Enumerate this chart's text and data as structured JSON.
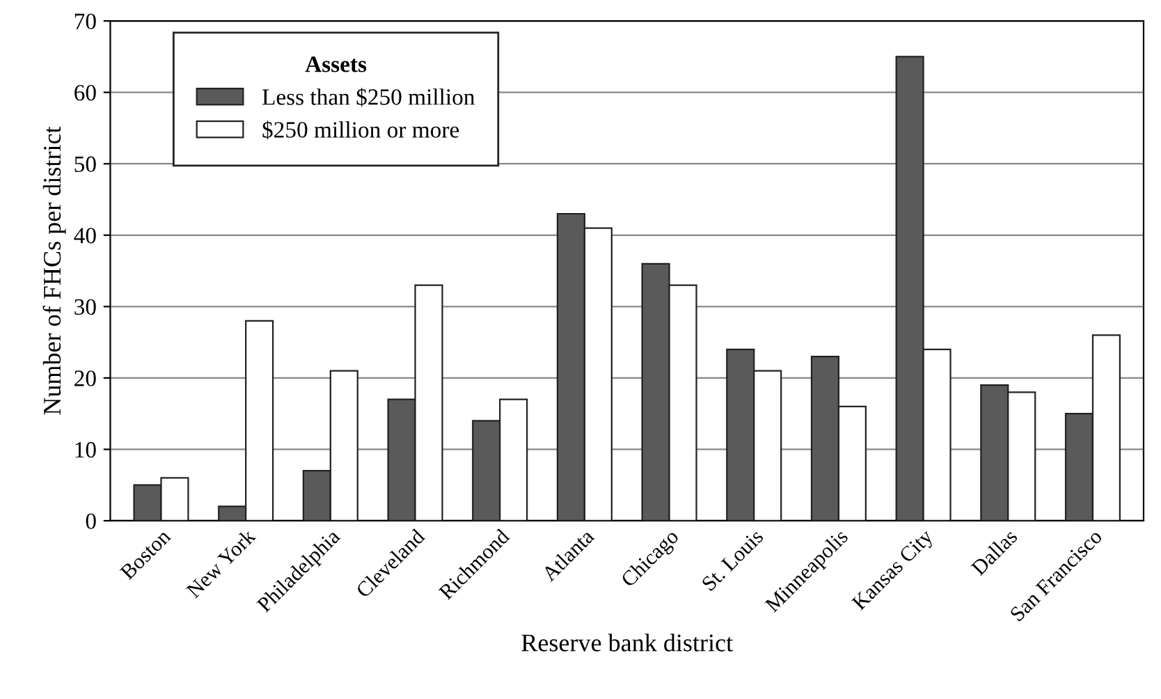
{
  "chart_data": {
    "type": "bar",
    "xlabel": "Reserve bank district",
    "ylabel": "Number of FHCs per district",
    "categories": [
      "Boston",
      "New York",
      "Philadelphia",
      "Cleveland",
      "Richmond",
      "Atlanta",
      "Chicago",
      "St. Louis",
      "Minneapolis",
      "Kansas City",
      "Dallas",
      "San Francisco"
    ],
    "series": [
      {
        "name": "Less than $250 million",
        "color": "#5a5a5a",
        "values": [
          5,
          2,
          7,
          17,
          14,
          43,
          36,
          24,
          23,
          65,
          19,
          15
        ]
      },
      {
        "name": "$250 million or more",
        "color": "#ffffff",
        "values": [
          6,
          28,
          21,
          33,
          17,
          41,
          33,
          21,
          16,
          24,
          18,
          26
        ]
      }
    ],
    "legend_title": "Assets",
    "legend": "top left",
    "ylim": [
      0,
      70
    ],
    "yticks": [
      0,
      10,
      20,
      30,
      40,
      50,
      60,
      70
    ],
    "grid": "y"
  }
}
